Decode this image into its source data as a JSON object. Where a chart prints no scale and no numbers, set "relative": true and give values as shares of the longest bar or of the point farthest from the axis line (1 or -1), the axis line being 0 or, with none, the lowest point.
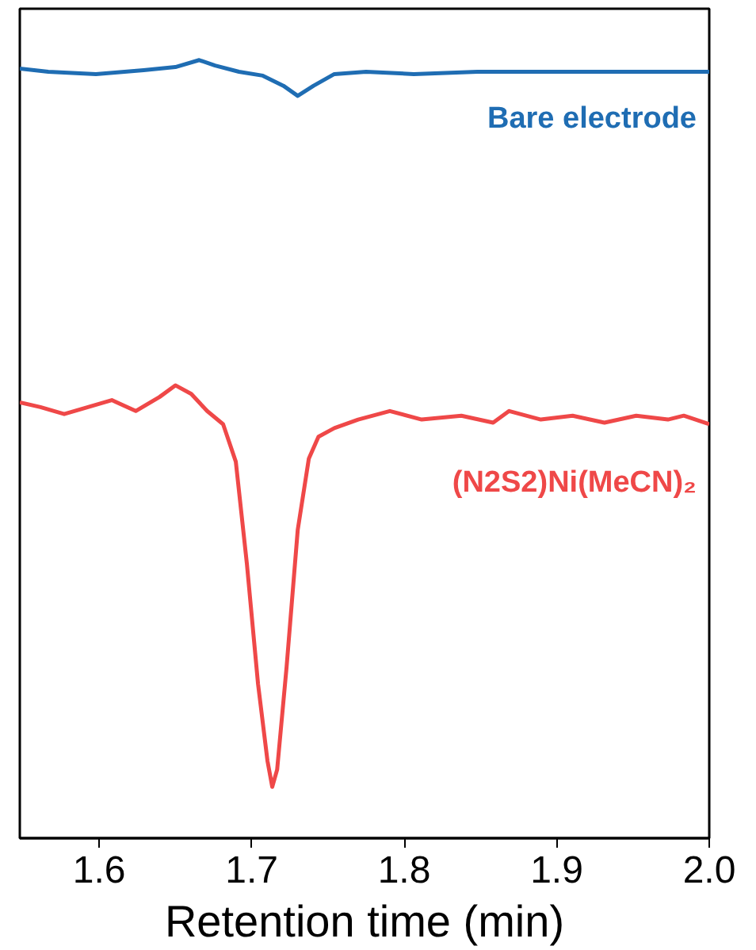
{
  "chart_data": {
    "type": "line",
    "relative": true,
    "xlabel": "Retention time (min)",
    "xlim": [
      1.548,
      2.0
    ],
    "xticks": [
      1.6,
      1.7,
      1.8,
      1.9,
      {
        "value": 2.0,
        "label": "2.0"
      }
    ],
    "grid": false,
    "series": [
      {
        "name": "Bare electrode",
        "color": "#1f6db3",
        "x": [
          1.548,
          1.5667,
          1.5979,
          1.6292,
          1.65,
          1.6656,
          1.676,
          1.6917,
          1.7073,
          1.7208,
          1.7302,
          1.7406,
          1.7542,
          1.775,
          1.8063,
          1.8479,
          1.8896,
          1.9313,
          1.9729,
          2.0
        ],
        "values": [
          0.989,
          0.985,
          0.982,
          0.987,
          0.991,
          1,
          0.993,
          0.985,
          0.98,
          0.967,
          0.954,
          0.967,
          0.982,
          0.985,
          0.982,
          0.985,
          0.985,
          0.985,
          0.985,
          0.985
        ]
      },
      {
        "name": "(N2S2)Ni(MeCN)₂",
        "color": "#ef4848",
        "x": [
          1.548,
          1.5615,
          1.5771,
          1.5927,
          1.6083,
          1.624,
          1.6396,
          1.65,
          1.6604,
          1.6708,
          1.6813,
          1.6896,
          1.6969,
          1.7042,
          1.7104,
          1.7135,
          1.7167,
          1.7229,
          1.7302,
          1.7375,
          1.7438,
          1.7542,
          1.7698,
          1.7906,
          1.8115,
          1.8375,
          1.8583,
          1.8688,
          1.8896,
          1.9104,
          1.9313,
          1.9521,
          1.9729,
          1.9833,
          2.0
        ],
        "values": [
          0.56,
          0.554,
          0.545,
          0.554,
          0.563,
          0.549,
          0.567,
          0.582,
          0.571,
          0.549,
          0.532,
          0.484,
          0.352,
          0.198,
          0.099,
          0.066,
          0.088,
          0.22,
          0.396,
          0.488,
          0.516,
          0.527,
          0.538,
          0.549,
          0.538,
          0.543,
          0.534,
          0.549,
          0.538,
          0.543,
          0.534,
          0.543,
          0.538,
          0.543,
          0.532
        ]
      }
    ]
  }
}
